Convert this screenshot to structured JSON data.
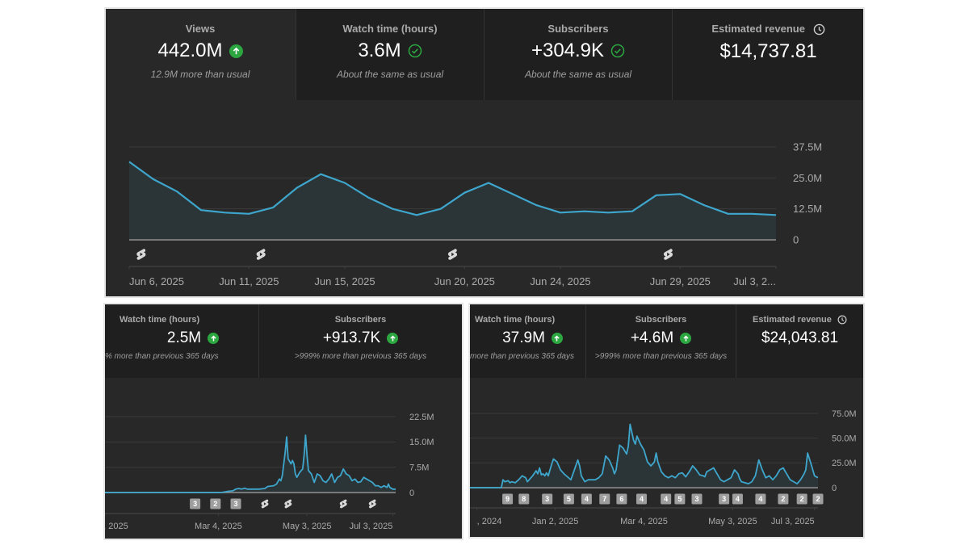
{
  "panels": {
    "top": {
      "cards": [
        {
          "label": "Views",
          "value": "442.0M",
          "indicator": "arrow-up-circle-icon",
          "sub": "12.9M more than usual"
        },
        {
          "label": "Watch time (hours)",
          "value": "3.6M",
          "indicator": "check-circle-icon",
          "sub": "About the same as usual"
        },
        {
          "label": "Subscribers",
          "value": "+304.9K",
          "indicator": "check-circle-icon",
          "sub": "About the same as usual"
        },
        {
          "label": "Estimated revenue",
          "value": "$14,737.81",
          "indicator": "clock-icon",
          "sub": ""
        }
      ]
    },
    "bottom_left": {
      "cards": [
        {
          "label": "Watch time (hours)",
          "value": "2.5M",
          "indicator": "arrow-up-circle-icon",
          "sub": "% more than previous 365 days"
        },
        {
          "label": "Subscribers",
          "value": "+913.7K",
          "indicator": "arrow-up-circle-icon",
          "sub": ">999% more than previous 365 days"
        }
      ]
    },
    "bottom_right": {
      "cards": [
        {
          "label": "Watch time (hours)",
          "value": "37.9M",
          "indicator": "arrow-up-circle-icon",
          "sub": "more than previous 365 days"
        },
        {
          "label": "Subscribers",
          "value": "+4.6M",
          "indicator": "arrow-up-circle-icon",
          "sub": ">999% more than previous 365 days"
        },
        {
          "label": "Estimated revenue",
          "value": "$24,043.81",
          "indicator": "clock-icon",
          "sub": ""
        }
      ]
    }
  },
  "colors": {
    "line": "#3ea6cc",
    "area": "#2b3538",
    "positive": "#2ba640",
    "marker_bg": "#9e9e9e"
  },
  "chart_data": [
    {
      "type": "area",
      "title": "Views (28 days)",
      "xlabel": "",
      "ylabel": "Views",
      "ylim": [
        0,
        37.5
      ],
      "y_unit": "M",
      "y_ticks": [
        "0",
        "12.5M",
        "25.0M",
        "37.5M"
      ],
      "x_tick_labels": [
        "Jun 6, 2025",
        "Jun 11, 2025",
        "Jun 15, 2025",
        "Jun 20, 2025",
        "Jun 24, 2025",
        "Jun 29, 2025",
        "Jul 3, 2..."
      ],
      "x_tick_index": [
        0,
        5,
        9,
        14,
        18,
        23,
        27
      ],
      "x": [
        "Jun 6",
        "Jun 7",
        "Jun 8",
        "Jun 9",
        "Jun 10",
        "Jun 11",
        "Jun 12",
        "Jun 13",
        "Jun 14",
        "Jun 15",
        "Jun 16",
        "Jun 17",
        "Jun 18",
        "Jun 19",
        "Jun 20",
        "Jun 21",
        "Jun 22",
        "Jun 23",
        "Jun 24",
        "Jun 25",
        "Jun 26",
        "Jun 27",
        "Jun 28",
        "Jun 29",
        "Jun 30",
        "Jul 1",
        "Jul 2",
        "Jul 3"
      ],
      "values": [
        31.5,
        24.5,
        19.5,
        12,
        11,
        10.5,
        13,
        21,
        26.5,
        23,
        17,
        12.5,
        10,
        12.5,
        19,
        23,
        18.5,
        14,
        11,
        11.5,
        11,
        11.5,
        18,
        18.5,
        14,
        10.5,
        10.5,
        10
      ],
      "markers": [
        {
          "type": "shorts-icon",
          "at": 0.5
        },
        {
          "type": "shorts-icon",
          "at": 5.5
        },
        {
          "type": "shorts-icon",
          "at": 13.5
        },
        {
          "type": "shorts-icon",
          "at": 22.5
        }
      ],
      "grid": true
    },
    {
      "type": "area",
      "title": "Views (365 days)",
      "xlabel": "",
      "ylabel": "Views",
      "ylim": [
        0,
        22.5
      ],
      "y_unit": "M",
      "y_ticks": [
        "0",
        "7.5M",
        "15.0M",
        "22.5M"
      ],
      "x_tick_labels": [
        "Jan 2, 2025",
        "Mar 4, 2025",
        "May 3, 2025",
        "Jul 3, 2025"
      ],
      "x_tick_pos": [
        0.0,
        0.39,
        0.695,
        0.99
      ],
      "series_xy": [
        [
          0,
          0
        ],
        [
          0.4,
          0
        ],
        [
          0.42,
          0.3
        ],
        [
          0.44,
          0.5
        ],
        [
          0.45,
          1.0
        ],
        [
          0.46,
          1.2
        ],
        [
          0.47,
          1.0
        ],
        [
          0.48,
          1.3
        ],
        [
          0.49,
          1.0
        ],
        [
          0.51,
          1.0
        ],
        [
          0.53,
          1.0
        ],
        [
          0.55,
          1.2
        ],
        [
          0.56,
          1.8
        ],
        [
          0.58,
          2.0
        ],
        [
          0.59,
          2.5
        ],
        [
          0.6,
          4.0
        ],
        [
          0.605,
          3.5
        ],
        [
          0.61,
          5.0
        ],
        [
          0.62,
          12
        ],
        [
          0.625,
          16.5
        ],
        [
          0.63,
          10
        ],
        [
          0.64,
          8.5
        ],
        [
          0.645,
          9.5
        ],
        [
          0.65,
          8.5
        ],
        [
          0.655,
          5.5
        ],
        [
          0.66,
          4.5
        ],
        [
          0.67,
          6.0
        ],
        [
          0.68,
          7.0
        ],
        [
          0.685,
          11
        ],
        [
          0.69,
          17
        ],
        [
          0.695,
          11
        ],
        [
          0.7,
          6.5
        ],
        [
          0.71,
          5.5
        ],
        [
          0.72,
          3.0
        ],
        [
          0.73,
          5.5
        ],
        [
          0.74,
          5.0
        ],
        [
          0.75,
          3.5
        ],
        [
          0.76,
          3.0
        ],
        [
          0.77,
          4.0
        ],
        [
          0.78,
          5.5
        ],
        [
          0.79,
          3.0
        ],
        [
          0.8,
          4.5
        ],
        [
          0.81,
          5.0
        ],
        [
          0.82,
          7.0
        ],
        [
          0.83,
          5.5
        ],
        [
          0.84,
          5.0
        ],
        [
          0.85,
          3.5
        ],
        [
          0.86,
          4.0
        ],
        [
          0.87,
          3.0
        ],
        [
          0.88,
          3.2
        ],
        [
          0.89,
          4.5
        ],
        [
          0.9,
          4.0
        ],
        [
          0.91,
          3.5
        ],
        [
          0.92,
          3.0
        ],
        [
          0.93,
          2.0
        ],
        [
          0.94,
          2.0
        ],
        [
          0.95,
          1.5
        ],
        [
          0.96,
          2.0
        ],
        [
          0.97,
          1.5
        ],
        [
          0.975,
          2.5
        ],
        [
          0.98,
          1.5
        ],
        [
          0.99,
          1.0
        ],
        [
          1.0,
          1.0
        ]
      ],
      "markers": [
        {
          "type": "count",
          "label": "3",
          "at": 0.31
        },
        {
          "type": "count",
          "label": "2",
          "at": 0.38
        },
        {
          "type": "count",
          "label": "3",
          "at": 0.45
        },
        {
          "type": "shorts-icon",
          "at": 0.55
        },
        {
          "type": "shorts-icon",
          "at": 0.63
        },
        {
          "type": "shorts-icon",
          "at": 0.82
        },
        {
          "type": "shorts-icon",
          "at": 0.92
        }
      ],
      "grid": true
    },
    {
      "type": "area",
      "title": "Views (lifetime)",
      "xlabel": "",
      "ylabel": "Views",
      "ylim": [
        0,
        75
      ],
      "y_unit": "M",
      "y_ticks": [
        "0",
        "25.0M",
        "50.0M",
        "75.0M"
      ],
      "x_tick_labels": [
        ", 2024",
        "Jan 2, 2025",
        "Mar 4, 2025",
        "May 3, 2025",
        "Jul 3, 2025"
      ],
      "x_tick_pos": [
        0.02,
        0.245,
        0.5,
        0.755,
        0.99
      ],
      "series_xy": [
        [
          0,
          0
        ],
        [
          0.09,
          0
        ],
        [
          0.095,
          8
        ],
        [
          0.1,
          6
        ],
        [
          0.11,
          7
        ],
        [
          0.115,
          5
        ],
        [
          0.12,
          6
        ],
        [
          0.13,
          5
        ],
        [
          0.14,
          8
        ],
        [
          0.15,
          12
        ],
        [
          0.16,
          10
        ],
        [
          0.165,
          6
        ],
        [
          0.17,
          8
        ],
        [
          0.18,
          12
        ],
        [
          0.19,
          17
        ],
        [
          0.195,
          14
        ],
        [
          0.2,
          20
        ],
        [
          0.205,
          13
        ],
        [
          0.21,
          14
        ],
        [
          0.215,
          12
        ],
        [
          0.22,
          15
        ],
        [
          0.225,
          12
        ],
        [
          0.23,
          18
        ],
        [
          0.235,
          24
        ],
        [
          0.24,
          29
        ],
        [
          0.25,
          26
        ],
        [
          0.26,
          18
        ],
        [
          0.27,
          14
        ],
        [
          0.28,
          11
        ],
        [
          0.29,
          8
        ],
        [
          0.3,
          18
        ],
        [
          0.31,
          28
        ],
        [
          0.315,
          22
        ],
        [
          0.32,
          12
        ],
        [
          0.33,
          6
        ],
        [
          0.34,
          8
        ],
        [
          0.36,
          8
        ],
        [
          0.37,
          10
        ],
        [
          0.38,
          14
        ],
        [
          0.39,
          32
        ],
        [
          0.4,
          28
        ],
        [
          0.41,
          20
        ],
        [
          0.415,
          14
        ],
        [
          0.42,
          18
        ],
        [
          0.43,
          43
        ],
        [
          0.44,
          40
        ],
        [
          0.45,
          34
        ],
        [
          0.455,
          42
        ],
        [
          0.46,
          64
        ],
        [
          0.47,
          48
        ],
        [
          0.475,
          44
        ],
        [
          0.48,
          52
        ],
        [
          0.485,
          48
        ],
        [
          0.49,
          44
        ],
        [
          0.5,
          38
        ],
        [
          0.51,
          26
        ],
        [
          0.52,
          22
        ],
        [
          0.53,
          26
        ],
        [
          0.535,
          35
        ],
        [
          0.54,
          26
        ],
        [
          0.55,
          16
        ],
        [
          0.56,
          12
        ],
        [
          0.57,
          10
        ],
        [
          0.58,
          12
        ],
        [
          0.59,
          10
        ],
        [
          0.6,
          14
        ],
        [
          0.61,
          15
        ],
        [
          0.62,
          11
        ],
        [
          0.63,
          16
        ],
        [
          0.64,
          22
        ],
        [
          0.65,
          18
        ],
        [
          0.66,
          13
        ],
        [
          0.67,
          12
        ],
        [
          0.675,
          11
        ],
        [
          0.68,
          16
        ],
        [
          0.69,
          18
        ],
        [
          0.7,
          20
        ],
        [
          0.71,
          14
        ],
        [
          0.72,
          8
        ],
        [
          0.73,
          6
        ],
        [
          0.74,
          8
        ],
        [
          0.75,
          10
        ],
        [
          0.76,
          18
        ],
        [
          0.77,
          14
        ],
        [
          0.775,
          9
        ],
        [
          0.78,
          6
        ],
        [
          0.79,
          5
        ],
        [
          0.8,
          4
        ],
        [
          0.81,
          6
        ],
        [
          0.82,
          12
        ],
        [
          0.83,
          28
        ],
        [
          0.84,
          18
        ],
        [
          0.85,
          10
        ],
        [
          0.86,
          12
        ],
        [
          0.87,
          8
        ],
        [
          0.88,
          12
        ],
        [
          0.89,
          18
        ],
        [
          0.9,
          20
        ],
        [
          0.91,
          14
        ],
        [
          0.92,
          8
        ],
        [
          0.93,
          6
        ],
        [
          0.94,
          4
        ],
        [
          0.95,
          8
        ],
        [
          0.96,
          14
        ],
        [
          0.965,
          18
        ],
        [
          0.97,
          35
        ],
        [
          0.98,
          24
        ],
        [
          0.99,
          12
        ],
        [
          1.0,
          10
        ]
      ],
      "markers": [
        {
          "type": "count",
          "label": "9",
          "at": 0.108
        },
        {
          "type": "count",
          "label": "8",
          "at": 0.155
        },
        {
          "type": "count",
          "label": "3",
          "at": 0.222
        },
        {
          "type": "count",
          "label": "5",
          "at": 0.284
        },
        {
          "type": "count",
          "label": "4",
          "at": 0.335
        },
        {
          "type": "count",
          "label": "7",
          "at": 0.387
        },
        {
          "type": "count",
          "label": "6",
          "at": 0.436
        },
        {
          "type": "count",
          "label": "4",
          "at": 0.493
        },
        {
          "type": "count",
          "label": "4",
          "at": 0.563
        },
        {
          "type": "count",
          "label": "5",
          "at": 0.603
        },
        {
          "type": "count",
          "label": "3",
          "at": 0.652
        },
        {
          "type": "count",
          "label": "3",
          "at": 0.73
        },
        {
          "type": "count",
          "label": "4",
          "at": 0.769
        },
        {
          "type": "count",
          "label": "4",
          "at": 0.835
        },
        {
          "type": "count",
          "label": "2",
          "at": 0.9
        },
        {
          "type": "count",
          "label": "2",
          "at": 0.954
        },
        {
          "type": "count",
          "label": "2",
          "at": 1.0
        }
      ],
      "grid": true
    }
  ]
}
